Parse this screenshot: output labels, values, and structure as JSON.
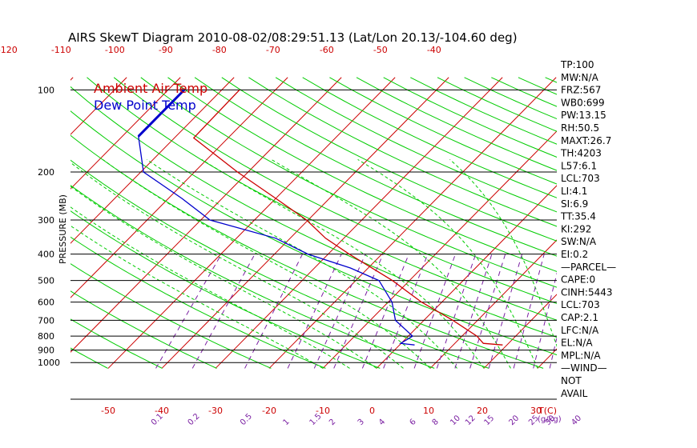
{
  "chart_data": {
    "type": "line",
    "title": "AIRS SkewT Diagram 2010-08-02/08:29:51.13 (Lat/Lon 20.13/-104.60 deg)",
    "ylabel": "PRESSURE (MB)",
    "xlabel_unit": "T(C)",
    "mixing_unit": "(g/kg)",
    "pressure_ticks": [
      "100",
      "200",
      "300",
      "400",
      "500",
      "600",
      "700",
      "800",
      "900",
      "1000"
    ],
    "pressure_levels": [
      100,
      200,
      300,
      400,
      500,
      600,
      700,
      800,
      900,
      1000
    ],
    "top_temp_ticks": [
      "-120",
      "-110",
      "-100",
      "-90",
      "-80",
      "-70",
      "-60",
      "-50",
      "-40"
    ],
    "bottom_temp_ticks": [
      "-50",
      "-40",
      "-30",
      "-20",
      "-10",
      "0",
      "10",
      "20",
      "30"
    ],
    "mixing_ratio_ticks": [
      "0.1",
      "0.2",
      "0.5",
      "1",
      "1.5",
      "2",
      "3",
      "4",
      "6",
      "8",
      "10",
      "12",
      "15",
      "20",
      "25",
      "30",
      "40"
    ],
    "legend": [
      {
        "name": "Ambient Air Temp",
        "color": "#cc0000"
      },
      {
        "name": "Dew Point Temp",
        "color": "#0000cc"
      }
    ],
    "series": [
      {
        "name": "Ambient Air Temp",
        "color": "#cc0000",
        "points": [
          [
            100,
            -76.7
          ],
          [
            150,
            -76.4
          ],
          [
            200,
            -62.0
          ],
          [
            250,
            -50.0
          ],
          [
            300,
            -40.3
          ],
          [
            350,
            -33.4
          ],
          [
            400,
            -26.1
          ],
          [
            500,
            -13.2
          ],
          [
            600,
            -3.8
          ],
          [
            700,
            5.4
          ],
          [
            800,
            12.8
          ],
          [
            850,
            15.3
          ],
          [
            862,
            19.2
          ]
        ]
      },
      {
        "name": "Dew Point Temp",
        "color": "#0000cc",
        "points": [
          [
            100,
            -87
          ],
          [
            148,
            -87
          ],
          [
            200,
            -79.5
          ],
          [
            250,
            -67.5
          ],
          [
            300,
            -58.3
          ],
          [
            350,
            -42.7
          ],
          [
            400,
            -33.8
          ],
          [
            450,
            -23.3
          ],
          [
            500,
            -15.7
          ],
          [
            600,
            -9.3
          ],
          [
            700,
            -5.3
          ],
          [
            800,
            0.8
          ],
          [
            850,
            -0.1
          ],
          [
            862,
            2.8
          ]
        ]
      }
    ],
    "indices": [
      "TP:100",
      "MW:N/A",
      "FRZ:567",
      "WB0:699",
      "PW:13.15",
      "RH:50.5",
      "MAXT:26.7",
      "TH:4203",
      "L57:6.1",
      "LCL:703",
      "LI:4.1",
      "SI:6.9",
      "TT:35.4",
      "KI:292",
      "SW:N/A",
      "EI:0.2",
      "—PARCEL—",
      "CAPE:0",
      "CINH:5443",
      "LCL:703",
      "CAP:2.1",
      "LFC:N/A",
      "EL:N/A",
      "MPL:N/A",
      "—WIND—",
      "NOT",
      "AVAIL"
    ],
    "colors": {
      "isotherm": "#cc0000",
      "dry_adiabat": "#00cc00",
      "moist_adiabat": "#00cc00",
      "mixing_ratio": "#7a1fa2",
      "temperature": "#cc0000",
      "dewpoint": "#0000cc",
      "isobar": "#000000"
    }
  }
}
